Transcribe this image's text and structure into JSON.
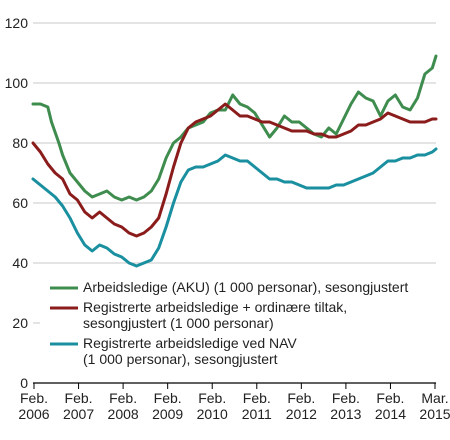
{
  "chart_data": {
    "type": "line",
    "title": "",
    "xlabel": "",
    "ylabel": "",
    "ylim": [
      0,
      120
    ],
    "y_ticks": [
      0,
      20,
      40,
      60,
      80,
      100,
      120
    ],
    "grid": "horizontal",
    "legend_position": "bottom-right",
    "x_tick_labels": [
      {
        "line1": "Feb.",
        "line2": "2006"
      },
      {
        "line1": "Feb.",
        "line2": "2007"
      },
      {
        "line1": "Feb.",
        "line2": "2008"
      },
      {
        "line1": "Feb.",
        "line2": "2009"
      },
      {
        "line1": "Feb.",
        "line2": "2010"
      },
      {
        "line1": "Feb.",
        "line2": "2011"
      },
      {
        "line1": "Feb.",
        "line2": "2012"
      },
      {
        "line1": "Feb.",
        "line2": "2013"
      },
      {
        "line1": "Feb.",
        "line2": "2014"
      },
      {
        "line1": "Mar.",
        "line2": "2015"
      }
    ],
    "x_start": "2006-02",
    "x_end": "2015-03",
    "series": [
      {
        "name_lines": [
          "Arbeidsledige (AKU) (1 000 personar), sesongjustert"
        ],
        "color": "#3f8c4f",
        "points": [
          [
            "2006-02",
            93
          ],
          [
            "2006-04",
            93
          ],
          [
            "2006-06",
            92
          ],
          [
            "2006-07",
            87
          ],
          [
            "2006-09",
            80
          ],
          [
            "2006-10",
            76
          ],
          [
            "2006-12",
            70
          ],
          [
            "2007-02",
            67
          ],
          [
            "2007-04",
            64
          ],
          [
            "2007-06",
            62
          ],
          [
            "2007-08",
            63
          ],
          [
            "2007-10",
            64
          ],
          [
            "2007-12",
            62
          ],
          [
            "2008-02",
            61
          ],
          [
            "2008-04",
            62
          ],
          [
            "2008-06",
            61
          ],
          [
            "2008-08",
            62
          ],
          [
            "2008-10",
            64
          ],
          [
            "2008-12",
            68
          ],
          [
            "2009-02",
            75
          ],
          [
            "2009-04",
            80
          ],
          [
            "2009-06",
            82
          ],
          [
            "2009-08",
            85
          ],
          [
            "2009-10",
            86
          ],
          [
            "2009-12",
            87
          ],
          [
            "2010-02",
            90
          ],
          [
            "2010-04",
            91
          ],
          [
            "2010-06",
            91
          ],
          [
            "2010-08",
            96
          ],
          [
            "2010-10",
            93
          ],
          [
            "2010-12",
            92
          ],
          [
            "2011-02",
            90
          ],
          [
            "2011-04",
            86
          ],
          [
            "2011-06",
            82
          ],
          [
            "2011-08",
            85
          ],
          [
            "2011-10",
            89
          ],
          [
            "2011-12",
            87
          ],
          [
            "2012-02",
            87
          ],
          [
            "2012-04",
            85
          ],
          [
            "2012-06",
            83
          ],
          [
            "2012-08",
            82
          ],
          [
            "2012-10",
            85
          ],
          [
            "2012-12",
            83
          ],
          [
            "2013-02",
            88
          ],
          [
            "2013-04",
            93
          ],
          [
            "2013-06",
            97
          ],
          [
            "2013-08",
            95
          ],
          [
            "2013-10",
            94
          ],
          [
            "2013-12",
            89
          ],
          [
            "2014-02",
            94
          ],
          [
            "2014-04",
            96
          ],
          [
            "2014-06",
            92
          ],
          [
            "2014-08",
            91
          ],
          [
            "2014-10",
            95
          ],
          [
            "2014-12",
            103
          ],
          [
            "2015-01",
            104
          ],
          [
            "2015-02",
            105
          ],
          [
            "2015-03",
            109
          ]
        ]
      },
      {
        "name_lines": [
          "Registrerte arbeidsledige + ordinære tiltak,",
          "sesongjustert (1 000 personar)"
        ],
        "color": "#8b1c1c",
        "points": [
          [
            "2006-02",
            80
          ],
          [
            "2006-04",
            77
          ],
          [
            "2006-06",
            73
          ],
          [
            "2006-08",
            70
          ],
          [
            "2006-10",
            68
          ],
          [
            "2006-12",
            63
          ],
          [
            "2007-02",
            61
          ],
          [
            "2007-04",
            57
          ],
          [
            "2007-06",
            55
          ],
          [
            "2007-08",
            57
          ],
          [
            "2007-10",
            55
          ],
          [
            "2007-12",
            53
          ],
          [
            "2008-02",
            52
          ],
          [
            "2008-04",
            50
          ],
          [
            "2008-06",
            49
          ],
          [
            "2008-08",
            50
          ],
          [
            "2008-10",
            52
          ],
          [
            "2008-12",
            55
          ],
          [
            "2009-02",
            63
          ],
          [
            "2009-04",
            72
          ],
          [
            "2009-06",
            80
          ],
          [
            "2009-08",
            85
          ],
          [
            "2009-10",
            87
          ],
          [
            "2009-12",
            88
          ],
          [
            "2010-02",
            89
          ],
          [
            "2010-04",
            91
          ],
          [
            "2010-06",
            93
          ],
          [
            "2010-08",
            91
          ],
          [
            "2010-10",
            89
          ],
          [
            "2010-12",
            89
          ],
          [
            "2011-02",
            88
          ],
          [
            "2011-04",
            87
          ],
          [
            "2011-06",
            87
          ],
          [
            "2011-08",
            86
          ],
          [
            "2011-10",
            85
          ],
          [
            "2011-12",
            84
          ],
          [
            "2012-02",
            84
          ],
          [
            "2012-04",
            84
          ],
          [
            "2012-06",
            83
          ],
          [
            "2012-08",
            83
          ],
          [
            "2012-10",
            82
          ],
          [
            "2012-12",
            82
          ],
          [
            "2013-02",
            83
          ],
          [
            "2013-04",
            84
          ],
          [
            "2013-06",
            86
          ],
          [
            "2013-08",
            86
          ],
          [
            "2013-10",
            87
          ],
          [
            "2013-12",
            88
          ],
          [
            "2014-02",
            90
          ],
          [
            "2014-04",
            89
          ],
          [
            "2014-06",
            88
          ],
          [
            "2014-08",
            87
          ],
          [
            "2014-10",
            87
          ],
          [
            "2014-12",
            87
          ],
          [
            "2015-02",
            88
          ],
          [
            "2015-03",
            88
          ]
        ]
      },
      {
        "name_lines": [
          "Registrerte arbeidsledige ved NAV",
          "(1 000 personar), sesongjustert"
        ],
        "color": "#1a8fa0",
        "points": [
          [
            "2006-02",
            68
          ],
          [
            "2006-04",
            66
          ],
          [
            "2006-06",
            64
          ],
          [
            "2006-08",
            62
          ],
          [
            "2006-10",
            59
          ],
          [
            "2006-12",
            55
          ],
          [
            "2007-02",
            50
          ],
          [
            "2007-04",
            46
          ],
          [
            "2007-06",
            44
          ],
          [
            "2007-08",
            46
          ],
          [
            "2007-10",
            45
          ],
          [
            "2007-12",
            43
          ],
          [
            "2008-02",
            42
          ],
          [
            "2008-04",
            40
          ],
          [
            "2008-06",
            39
          ],
          [
            "2008-08",
            40
          ],
          [
            "2008-10",
            41
          ],
          [
            "2008-12",
            45
          ],
          [
            "2009-02",
            52
          ],
          [
            "2009-04",
            60
          ],
          [
            "2009-06",
            67
          ],
          [
            "2009-08",
            71
          ],
          [
            "2009-10",
            72
          ],
          [
            "2009-12",
            72
          ],
          [
            "2010-02",
            73
          ],
          [
            "2010-04",
            74
          ],
          [
            "2010-06",
            76
          ],
          [
            "2010-08",
            75
          ],
          [
            "2010-10",
            74
          ],
          [
            "2010-12",
            74
          ],
          [
            "2011-02",
            72
          ],
          [
            "2011-04",
            70
          ],
          [
            "2011-06",
            68
          ],
          [
            "2011-08",
            68
          ],
          [
            "2011-10",
            67
          ],
          [
            "2011-12",
            67
          ],
          [
            "2012-02",
            66
          ],
          [
            "2012-04",
            65
          ],
          [
            "2012-06",
            65
          ],
          [
            "2012-08",
            65
          ],
          [
            "2012-10",
            65
          ],
          [
            "2012-12",
            66
          ],
          [
            "2013-02",
            66
          ],
          [
            "2013-04",
            67
          ],
          [
            "2013-06",
            68
          ],
          [
            "2013-08",
            69
          ],
          [
            "2013-10",
            70
          ],
          [
            "2013-12",
            72
          ],
          [
            "2014-02",
            74
          ],
          [
            "2014-04",
            74
          ],
          [
            "2014-06",
            75
          ],
          [
            "2014-08",
            75
          ],
          [
            "2014-10",
            76
          ],
          [
            "2014-12",
            76
          ],
          [
            "2015-02",
            77
          ],
          [
            "2015-03",
            78
          ]
        ]
      }
    ]
  }
}
